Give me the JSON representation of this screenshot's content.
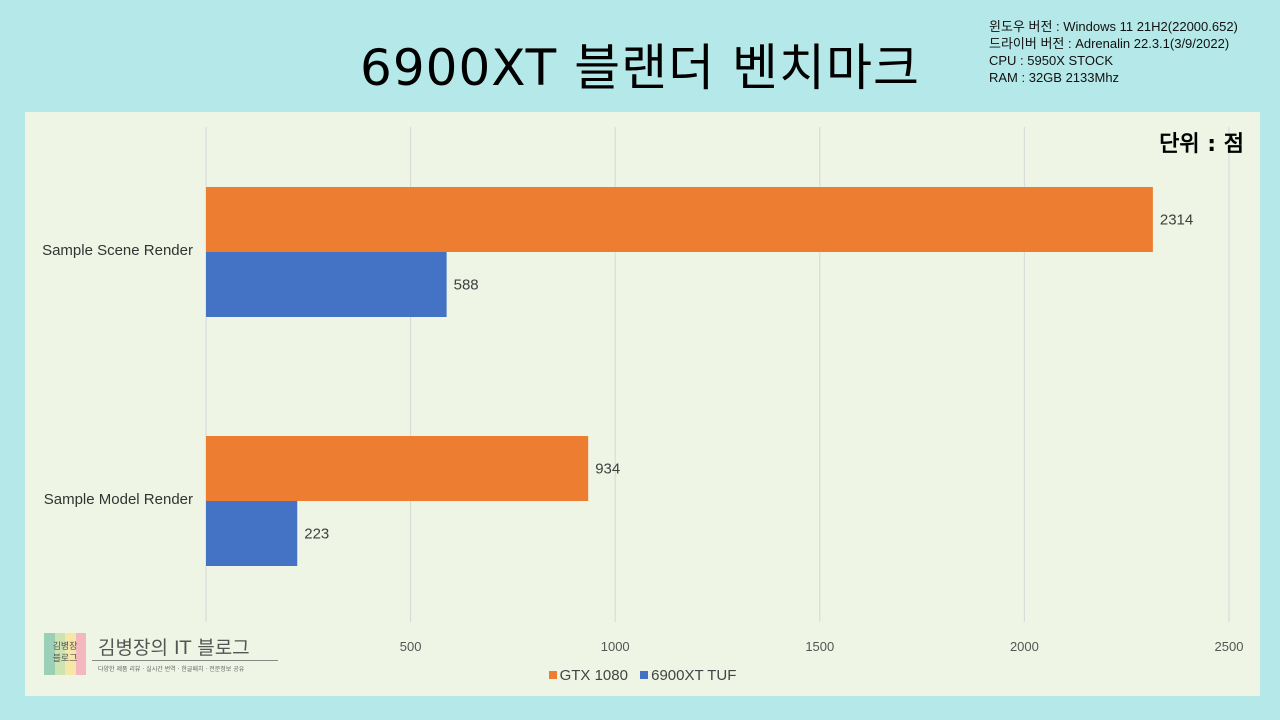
{
  "header": {
    "title": "6900XT 블랜더 벤치마크",
    "specs": [
      "윈도우 버전 : Windows 11 21H2(22000.652)",
      "드라이버 버전 : Adrenalin 22.3.1(3/9/2022)",
      "CPU : 5950X STOCK",
      "RAM : 32GB 2133Mhz"
    ]
  },
  "chart_data": {
    "type": "bar",
    "orientation": "horizontal",
    "unit_label": "단위 : 점",
    "categories": [
      "Sample Scene Render",
      "Sample Model Render"
    ],
    "series": [
      {
        "name": "GTX 1080",
        "color": "#ed7d31",
        "values": [
          2314,
          934
        ]
      },
      {
        "name": "6900XT TUF",
        "color": "#4472c4",
        "values": [
          588,
          223
        ]
      }
    ],
    "xlim": [
      0,
      2500
    ],
    "x_ticks": [
      500,
      1000,
      1500,
      2000,
      2500
    ],
    "grid": true,
    "legend_position": "bottom"
  },
  "logo": {
    "box_text": [
      "김병장",
      "블로그"
    ],
    "name": "김병장의 IT 블로그",
    "tagline": "다양한 제품 리뷰 · 실시간 번역 · 한글패치 · 전문정보 공유",
    "colors": [
      "#9ccfb8",
      "#cde3b0",
      "#f6e6a8",
      "#f4b7bf"
    ]
  }
}
